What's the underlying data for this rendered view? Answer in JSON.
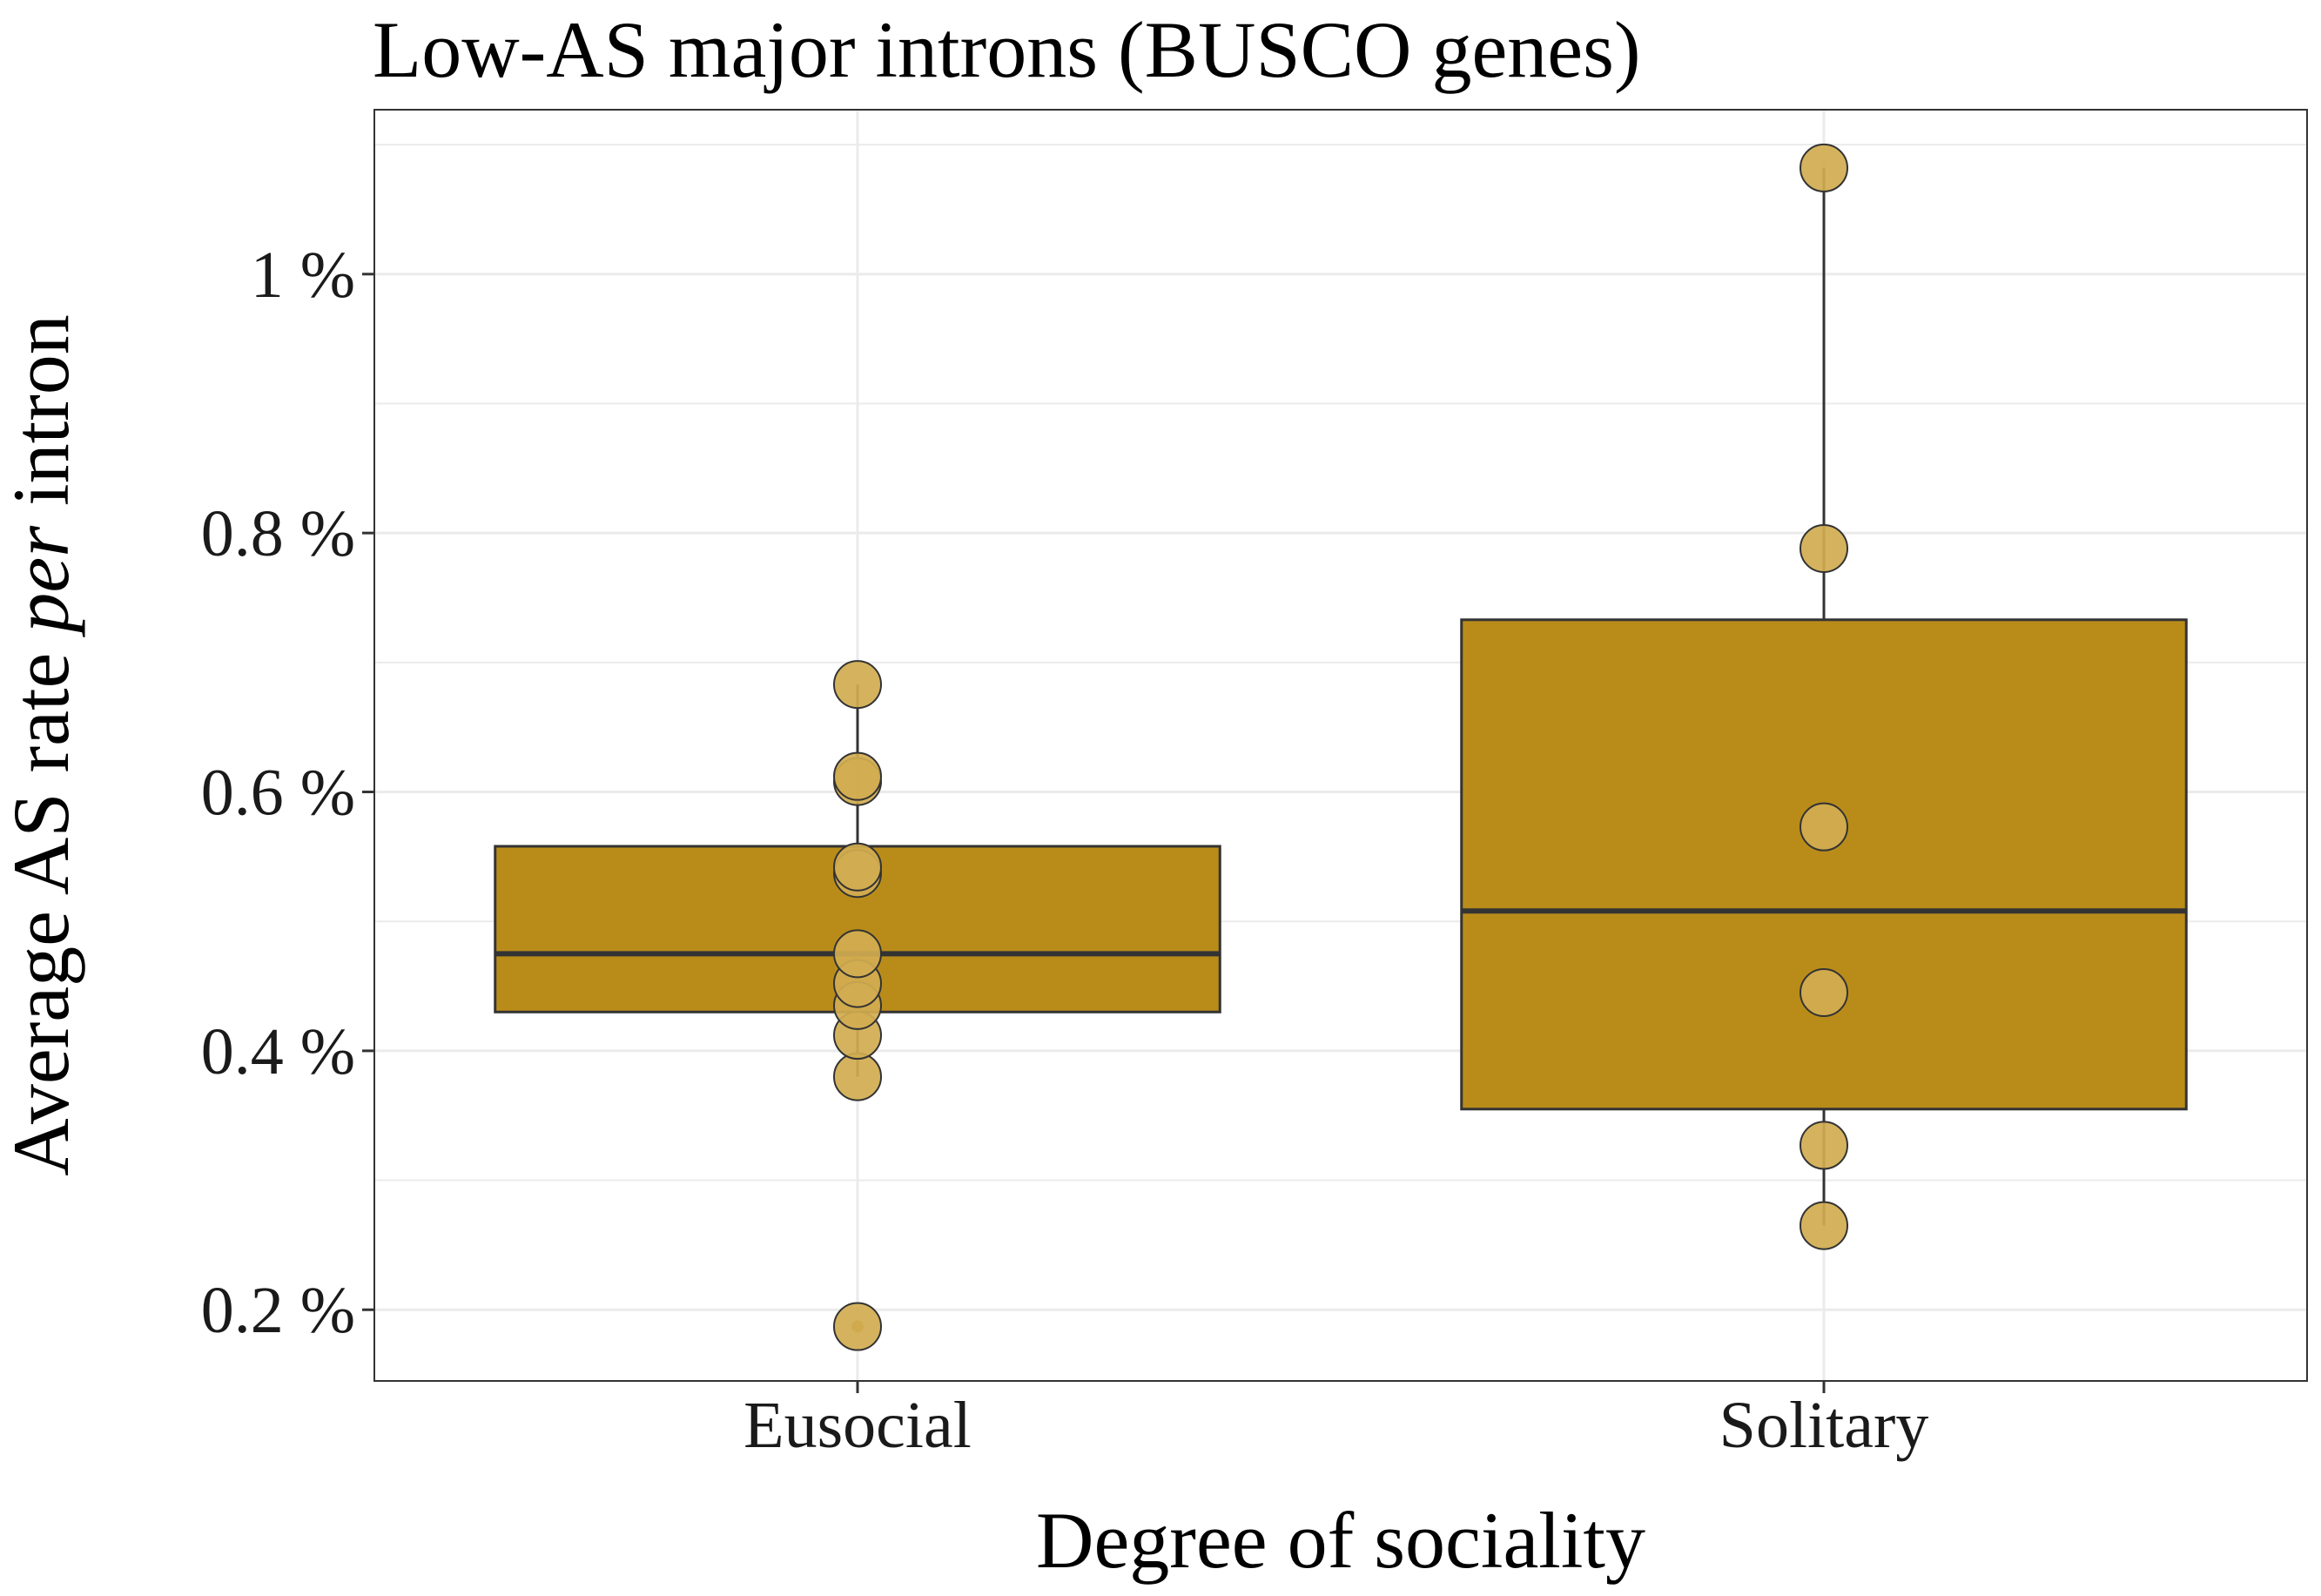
{
  "chart_data": {
    "type": "box",
    "title": "Low-AS major introns (BUSCO genes)",
    "xlabel": "Degree of sociality",
    "ylabel_parts": [
      "Average AS rate ",
      "per",
      " intron"
    ],
    "yticks": [
      0.2,
      0.4,
      0.6,
      0.8,
      1.0
    ],
    "ytick_labels": [
      "0.2 %",
      "0.4 %",
      "0.6 %",
      "0.8 %",
      "1 %"
    ],
    "ylim": [
      0.145,
      1.127
    ],
    "categories": [
      "Eusocial",
      "Solitary"
    ],
    "grid": true,
    "colors": {
      "box_fill": "#B98C1A",
      "box_stroke": "#333333",
      "point_fill": "#D1AC50",
      "point_stroke": "#333333",
      "grid": "#EBEBEB",
      "panel_border": "#333333"
    },
    "boxes": [
      {
        "category": "Eusocial",
        "q1": 0.43,
        "median": 0.475,
        "q3": 0.558,
        "whisker_low": 0.38,
        "whisker_high": 0.683,
        "outliers": [
          0.187
        ]
      },
      {
        "category": "Solitary",
        "q1": 0.355,
        "median": 0.508,
        "q3": 0.733,
        "whisker_low": 0.265,
        "whisker_high": 1.082,
        "outliers": []
      }
    ],
    "points": [
      {
        "category": "Eusocial",
        "values": [
          0.187,
          0.38,
          0.412,
          0.435,
          0.452,
          0.475,
          0.537,
          0.542,
          0.608,
          0.612,
          0.683
        ]
      },
      {
        "category": "Solitary",
        "values": [
          0.265,
          0.327,
          0.445,
          0.573,
          0.788,
          1.082
        ]
      }
    ]
  }
}
